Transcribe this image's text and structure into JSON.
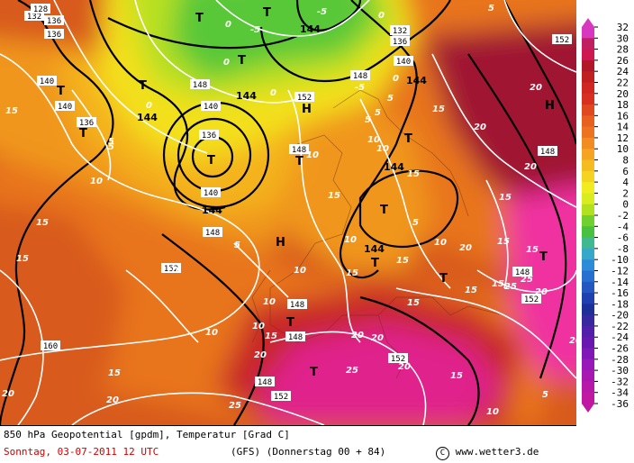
{
  "map": {
    "colors": {
      "sea_mid": "#d85a1e",
      "warm_orange": "#e8741c",
      "orange_light": "#f0961e",
      "yellow_orange": "#f4b21c",
      "yellow": "#f3e01c",
      "lime": "#b8e020",
      "green": "#58c838",
      "red": "#c82828",
      "dark_red": "#a01830",
      "magenta": "#e0208c",
      "hot_pink": "#f030a0"
    },
    "pressure_symbols": [
      {
        "text": "T"
      },
      {
        "text": "T"
      },
      {
        "text": "T"
      },
      {
        "text": "T"
      },
      {
        "text": "T"
      },
      {
        "text": "T"
      },
      {
        "text": "T"
      },
      {
        "text": "T"
      },
      {
        "text": "T"
      },
      {
        "text": "T"
      },
      {
        "text": "T"
      },
      {
        "text": "T"
      },
      {
        "text": "T"
      },
      {
        "text": "T"
      },
      {
        "text": "T"
      },
      {
        "text": "H"
      },
      {
        "text": "H"
      },
      {
        "text": "H"
      }
    ],
    "geopotential_labels_bold": [
      {
        "text": "144"
      },
      {
        "text": "144"
      },
      {
        "text": "144"
      },
      {
        "text": "144"
      },
      {
        "text": "144"
      },
      {
        "text": "144"
      },
      {
        "text": "144"
      }
    ],
    "geopotential_labels_boxed": [
      {
        "text": "132"
      },
      {
        "text": "136"
      },
      {
        "text": "140"
      },
      {
        "text": "136"
      },
      {
        "text": "140"
      },
      {
        "text": "148"
      },
      {
        "text": "140"
      },
      {
        "text": "136"
      },
      {
        "text": "140"
      },
      {
        "text": "148"
      },
      {
        "text": "152"
      },
      {
        "text": "148"
      },
      {
        "text": "132"
      },
      {
        "text": "136"
      },
      {
        "text": "140"
      },
      {
        "text": "148"
      },
      {
        "text": "152"
      },
      {
        "text": "148"
      },
      {
        "text": "152"
      },
      {
        "text": "148"
      },
      {
        "text": "160"
      },
      {
        "text": "148"
      },
      {
        "text": "148"
      },
      {
        "text": "152"
      },
      {
        "text": "152"
      },
      {
        "text": "152"
      },
      {
        "text": "148"
      },
      {
        "text": "128"
      },
      {
        "text": "136"
      }
    ],
    "temperature_labels": [
      {
        "text": "15"
      },
      {
        "text": "5"
      },
      {
        "text": "10"
      },
      {
        "text": "15"
      },
      {
        "text": "20"
      },
      {
        "text": "15"
      },
      {
        "text": "10"
      },
      {
        "text": "5"
      },
      {
        "text": "0"
      },
      {
        "text": "0"
      },
      {
        "text": "-5"
      },
      {
        "text": "0"
      },
      {
        "text": "-5"
      },
      {
        "text": "-5"
      },
      {
        "text": "0"
      },
      {
        "text": "5"
      },
      {
        "text": "0"
      },
      {
        "text": "0"
      },
      {
        "text": "5"
      },
      {
        "text": "5"
      },
      {
        "text": "10"
      },
      {
        "text": "10"
      },
      {
        "text": "15"
      },
      {
        "text": "20"
      },
      {
        "text": "15"
      },
      {
        "text": "20"
      },
      {
        "text": "15"
      },
      {
        "text": "10"
      },
      {
        "text": "15"
      },
      {
        "text": "10"
      },
      {
        "text": "15"
      },
      {
        "text": "10"
      },
      {
        "text": "10"
      },
      {
        "text": "15"
      },
      {
        "text": "20"
      },
      {
        "text": "15"
      },
      {
        "text": "10"
      },
      {
        "text": "15"
      },
      {
        "text": "20"
      },
      {
        "text": "20"
      },
      {
        "text": "20"
      },
      {
        "text": "25"
      },
      {
        "text": "25"
      },
      {
        "text": "20"
      },
      {
        "text": "15"
      },
      {
        "text": "15"
      },
      {
        "text": "10"
      },
      {
        "text": "5"
      },
      {
        "text": "5"
      },
      {
        "text": "10"
      },
      {
        "text": "15"
      },
      {
        "text": "20"
      },
      {
        "text": "25"
      },
      {
        "text": "15"
      },
      {
        "text": "20"
      },
      {
        "text": "25"
      },
      {
        "text": "20"
      },
      {
        "text": "5"
      },
      {
        "text": "15"
      },
      {
        "text": "20"
      },
      {
        "text": "15"
      },
      {
        "text": "10"
      },
      {
        "text": "5"
      }
    ]
  },
  "legend": {
    "ticks": [
      "32",
      "30",
      "28",
      "26",
      "24",
      "22",
      "20",
      "18",
      "16",
      "14",
      "12",
      "10",
      "8",
      "6",
      "4",
      "2",
      "0",
      "-2",
      "-4",
      "-6",
      "-8",
      "-10",
      "-12",
      "-14",
      "-16",
      "-18",
      "-20",
      "-22",
      "-24",
      "-26",
      "-28",
      "-30",
      "-32",
      "-34",
      "-36"
    ],
    "colors": [
      "#d838c0",
      "#c02060",
      "#d01850",
      "#b01828",
      "#c02020",
      "#d02820",
      "#d83020",
      "#e04820",
      "#e86020",
      "#ec7420",
      "#f08c20",
      "#f4a420",
      "#f4bc20",
      "#f4d420",
      "#f0ec20",
      "#d8ec20",
      "#b0e020",
      "#70d030",
      "#48c040",
      "#40b890",
      "#38a8c8",
      "#2c8cd8",
      "#2870d0",
      "#2458c0",
      "#2040b0",
      "#1c3098",
      "#3828a0",
      "#5020a8",
      "#6818b0",
      "#8018b8",
      "#9818b8",
      "#a818b0",
      "#b818a8",
      "#c018a0"
    ]
  },
  "footer": {
    "line1": "850 hPa Geopotential [gpdm], Temperatur [Grad C]",
    "date": "Sonntag, 03-07-2011  12 UTC",
    "model": "(GFS)  (Donnerstag 00 + 84)",
    "copyright_symbol": "C",
    "website": "www.wetter3.de"
  }
}
